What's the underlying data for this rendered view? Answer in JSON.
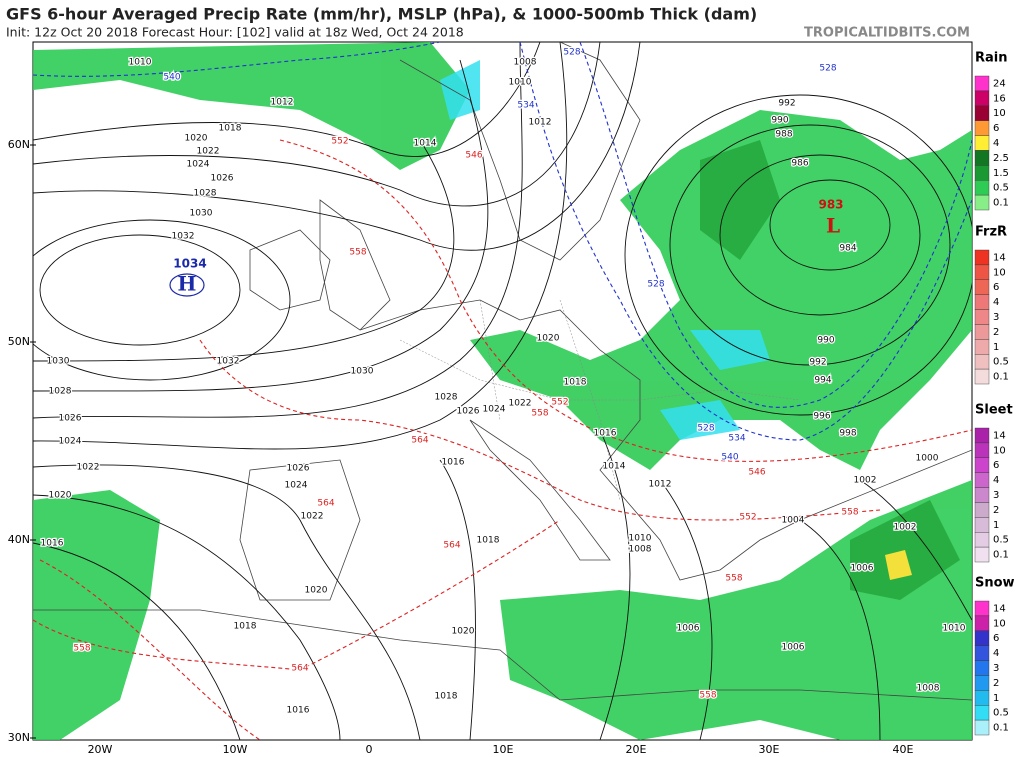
{
  "header": {
    "title": "GFS 6-hour Averaged Precip Rate (mm/hr), MSLP (hPa), & 1000-500mb Thick (dam)",
    "subtitle": "Init: 12z Oct 20 2018   Forecast Hour: [102]   valid at 18z Wed, Oct 24 2018",
    "brand": "TROPICALTIDBITS.COM"
  },
  "latitude_labels": [
    "60N",
    "50N",
    "40N",
    "30N"
  ],
  "longitude_labels": [
    "20W",
    "10W",
    "0",
    "10E",
    "20E",
    "30E",
    "40E"
  ],
  "pressure_centers": [
    {
      "value": "1034",
      "symbol": "H",
      "color": "#1a2aa8"
    },
    {
      "value": "983",
      "symbol": "L",
      "color": "#cc1111"
    }
  ],
  "isobar_labels": [
    "1010",
    "1012",
    "1018",
    "1020",
    "1022",
    "1024",
    "1026",
    "1028",
    "1030",
    "1032",
    "1030",
    "1032",
    "1030",
    "1028",
    "1026",
    "1024",
    "1022",
    "1020",
    "1016",
    "1026",
    "1024",
    "1022",
    "1020",
    "1018",
    "1020",
    "1018",
    "1016",
    "1016",
    "1018",
    "1020",
    "1018",
    "1016",
    "1014",
    "1012",
    "1010",
    "1008",
    "1014",
    "1010",
    "1008",
    "1012",
    "992",
    "990",
    "988",
    "986",
    "984",
    "990",
    "992",
    "994",
    "996",
    "998",
    "1000",
    "1002",
    "1004",
    "1002",
    "1006",
    "1006",
    "1006",
    "1008",
    "1010",
    "1024",
    "1022",
    "1028",
    "1026"
  ],
  "thickness_labels_blue": [
    "540",
    "528",
    "534",
    "528",
    "528",
    "528",
    "534",
    "540"
  ],
  "thickness_labels_red": [
    "552",
    "546",
    "558",
    "558",
    "552",
    "564",
    "564",
    "564",
    "546",
    "552",
    "558",
    "558",
    "564",
    "558",
    "558"
  ],
  "legends": [
    {
      "title": "Rain",
      "labels": [
        24,
        16,
        10,
        6,
        4,
        2.5,
        1.5,
        0.5,
        0.1
      ],
      "colors": [
        "#ff33cc",
        "#cc0066",
        "#990033",
        "#ff9933",
        "#ffee33",
        "#117722",
        "#1a9933",
        "#2ecc55",
        "#88ee88"
      ]
    },
    {
      "title": "FrzR",
      "labels": [
        14,
        10,
        6,
        4,
        3,
        2,
        1,
        0.5,
        0.1
      ],
      "colors": [
        "#ee3322",
        "#ee5544",
        "#ee6655",
        "#ee7777",
        "#ee8888",
        "#ee9999",
        "#eeaaaa",
        "#f0c0c0",
        "#f5dcdc"
      ]
    },
    {
      "title": "Sleet",
      "labels": [
        14,
        10,
        6,
        4,
        3,
        2,
        1,
        0.5,
        0.1
      ],
      "colors": [
        "#aa22aa",
        "#bb33bb",
        "#cc44cc",
        "#cc66cc",
        "#cc88cc",
        "#ccaacc",
        "#d8bbd8",
        "#e4cce4",
        "#f0e0f0"
      ]
    },
    {
      "title": "Snow",
      "labels": [
        14,
        10,
        6,
        4,
        3,
        2,
        1,
        0.5,
        0.1
      ],
      "colors": [
        "#ff33cc",
        "#cc22aa",
        "#3333cc",
        "#3355dd",
        "#2277ee",
        "#2299f0",
        "#22bbf0",
        "#33ddf5",
        "#aaf0fa"
      ]
    }
  ]
}
